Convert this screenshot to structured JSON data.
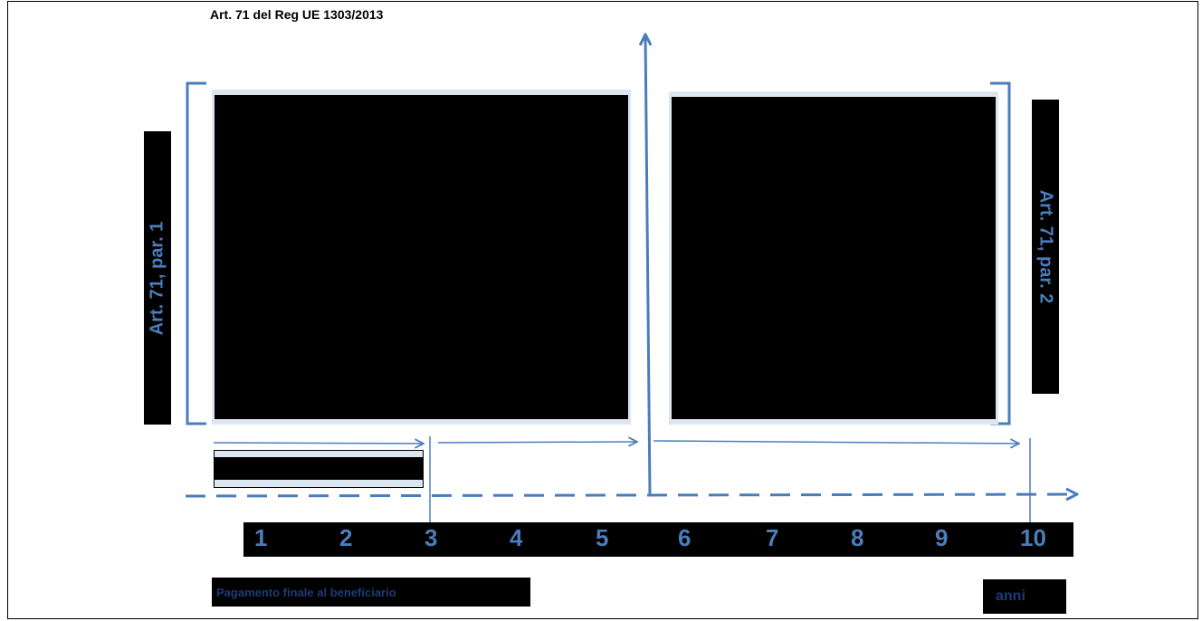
{
  "title": "Art. 71 del Reg UE 1303/2013",
  "left_label": "Art. 71, par. 1",
  "right_label": "Art. 71, par. 2",
  "years": [
    "1",
    "2",
    "3",
    "4",
    "5",
    "6",
    "7",
    "8",
    "9",
    "10"
  ],
  "payment_label": "Pagamento finale al beneficiario",
  "unit_label": "anni",
  "colors": {
    "accent": "#4a7dbb",
    "panel_border": "#dce6f1",
    "dark_text": "#1f3a7a"
  }
}
